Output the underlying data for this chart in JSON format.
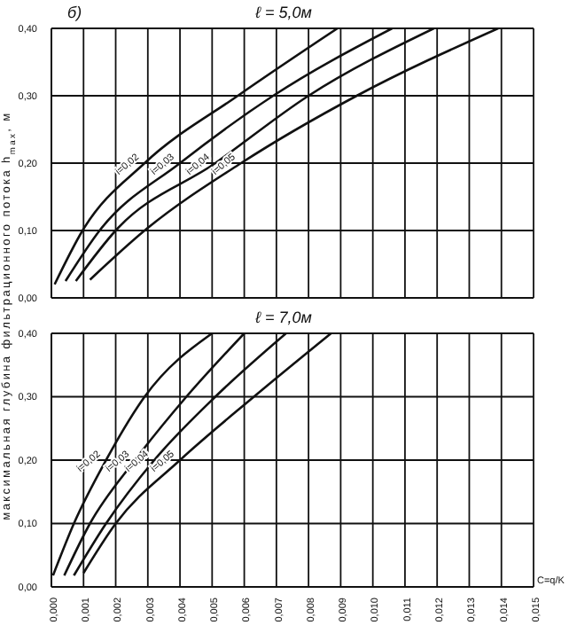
{
  "chart_data": [
    {
      "type": "line",
      "title": "ℓ = 5,0м",
      "ylabel": "максимальная глубина фильтрационного потока h$_{max}$, м",
      "annotations": [
        "б)"
      ],
      "tick_labels": "y",
      "grid": true,
      "xlim": [
        0,
        0.015
      ],
      "xticks": [
        0,
        0.001,
        0.002,
        0.003,
        0.004,
        0.005,
        0.006,
        0.007,
        0.008,
        0.009,
        0.01,
        0.011,
        0.012,
        0.013,
        0.014,
        0.015
      ],
      "ylim": [
        0,
        0.4
      ],
      "yticks": [
        {
          "value": 0,
          "label": "0,00"
        },
        {
          "value": 0.1,
          "label": "0,10"
        },
        {
          "value": 0.2,
          "label": "0,20"
        },
        {
          "value": 0.3,
          "label": "0,30"
        },
        {
          "value": 0.4,
          "label": "0,40"
        }
      ],
      "series": [
        {
          "name": "i=0,02",
          "color": "#111111",
          "x": [
            0.0001,
            0.00097,
            0.0029,
            0.0058,
            0.0089
          ],
          "values": [
            0.02,
            0.1,
            0.2,
            0.3,
            0.4
          ]
        },
        {
          "name": "i=0,03",
          "color": "#111111",
          "x": [
            0.00044,
            0.0015,
            0.004,
            0.0069,
            0.0106
          ],
          "values": [
            0.025,
            0.1,
            0.2,
            0.3,
            0.4
          ]
        },
        {
          "name": "i=0,04",
          "color": "#111111",
          "x": [
            0.00076,
            0.002,
            0.0051,
            0.008,
            0.0119
          ],
          "values": [
            0.025,
            0.1,
            0.2,
            0.3,
            0.4
          ]
        },
        {
          "name": "i=0,05",
          "color": "#111111",
          "x": [
            0.0012,
            0.0029,
            0.0059,
            0.0095,
            0.0139
          ],
          "values": [
            0.027,
            0.1,
            0.2,
            0.3,
            0.4
          ]
        }
      ]
    },
    {
      "type": "line",
      "title": "ℓ = 7,0м",
      "xlabel": "C=q/K",
      "grid": true,
      "xlim": [
        0,
        0.015
      ],
      "xticks": [
        {
          "value": 0,
          "label": "0,000"
        },
        {
          "value": 0.001,
          "label": "0,001"
        },
        {
          "value": 0.002,
          "label": "0,002"
        },
        {
          "value": 0.003,
          "label": "0,003"
        },
        {
          "value": 0.004,
          "label": "0,004"
        },
        {
          "value": 0.005,
          "label": "0,005"
        },
        {
          "value": 0.006,
          "label": "0,006"
        },
        {
          "value": 0.007,
          "label": "0,007"
        },
        {
          "value": 0.008,
          "label": "0,008"
        },
        {
          "value": 0.009,
          "label": "0,009"
        },
        {
          "value": 0.01,
          "label": "0,010"
        },
        {
          "value": 0.011,
          "label": "0,011"
        },
        {
          "value": 0.012,
          "label": "0,012"
        },
        {
          "value": 0.013,
          "label": "0,013"
        },
        {
          "value": 0.014,
          "label": "0,014"
        },
        {
          "value": 0.015,
          "label": "0,015"
        }
      ],
      "ylim": [
        0,
        0.4
      ],
      "yticks": [
        {
          "value": 0,
          "label": "0,00"
        },
        {
          "value": 0.1,
          "label": "0,10"
        },
        {
          "value": 0.2,
          "label": "0,20"
        },
        {
          "value": 0.3,
          "label": "0,30"
        },
        {
          "value": 0.4,
          "label": "0,40"
        }
      ],
      "series": [
        {
          "name": "i=0,02",
          "color": "#111111",
          "x": [
            5e-05,
            0.0007,
            0.0017,
            0.0029,
            0.005
          ],
          "values": [
            0.018,
            0.1,
            0.2,
            0.3,
            0.4
          ]
        },
        {
          "name": "i=0,03",
          "color": "#111111",
          "x": [
            0.0004,
            0.0012,
            0.0026,
            0.0042,
            0.006
          ],
          "values": [
            0.018,
            0.1,
            0.2,
            0.3,
            0.4
          ]
        },
        {
          "name": "i=0,04",
          "color": "#111111",
          "x": [
            0.0007,
            0.0017,
            0.0032,
            0.0051,
            0.0073
          ],
          "values": [
            0.018,
            0.1,
            0.2,
            0.3,
            0.4
          ]
        },
        {
          "name": "i=0,05",
          "color": "#111111",
          "x": [
            0.001,
            0.002,
            0.004,
            0.0063,
            0.0087
          ],
          "values": [
            0.022,
            0.1,
            0.2,
            0.3,
            0.4
          ]
        }
      ]
    }
  ]
}
